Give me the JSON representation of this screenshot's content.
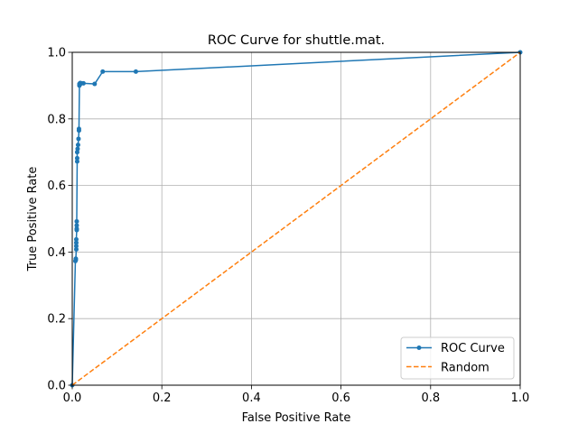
{
  "chart_data": {
    "type": "line",
    "title": "ROC Curve for shuttle.mat.",
    "xlabel": "False Positive Rate",
    "ylabel": "True Positive Rate",
    "xlim": [
      0,
      1
    ],
    "ylim": [
      0,
      1
    ],
    "xticks": [
      "0.0",
      "0.2",
      "0.4",
      "0.6",
      "0.8",
      "1.0"
    ],
    "yticks": [
      "0.0",
      "0.2",
      "0.4",
      "0.6",
      "0.8",
      "1.0"
    ],
    "grid": true,
    "legend_position": "lower right",
    "series": [
      {
        "name": "ROC Curve",
        "color": "#1f77b4",
        "style": "line-with-dot-markers",
        "x": [
          0.0,
          0.007,
          0.008,
          0.008,
          0.009,
          0.009,
          0.009,
          0.009,
          0.01,
          0.01,
          0.01,
          0.01,
          0.011,
          0.011,
          0.011,
          0.012,
          0.013,
          0.014,
          0.015,
          0.015,
          0.016,
          0.016,
          0.018,
          0.018,
          0.02,
          0.025,
          0.05,
          0.068,
          0.142,
          1.0
        ],
        "y": [
          0.0,
          0.373,
          0.376,
          0.38,
          0.408,
          0.418,
          0.428,
          0.438,
          0.466,
          0.47,
          0.48,
          0.492,
          0.672,
          0.682,
          0.7,
          0.71,
          0.722,
          0.74,
          0.765,
          0.77,
          0.9,
          0.905,
          0.905,
          0.908,
          0.907,
          0.907,
          0.905,
          0.942,
          0.942,
          1.0
        ]
      },
      {
        "name": "Random",
        "color": "#ff7f0e",
        "style": "dashed",
        "x": [
          0,
          1
        ],
        "y": [
          0,
          1
        ]
      }
    ]
  }
}
